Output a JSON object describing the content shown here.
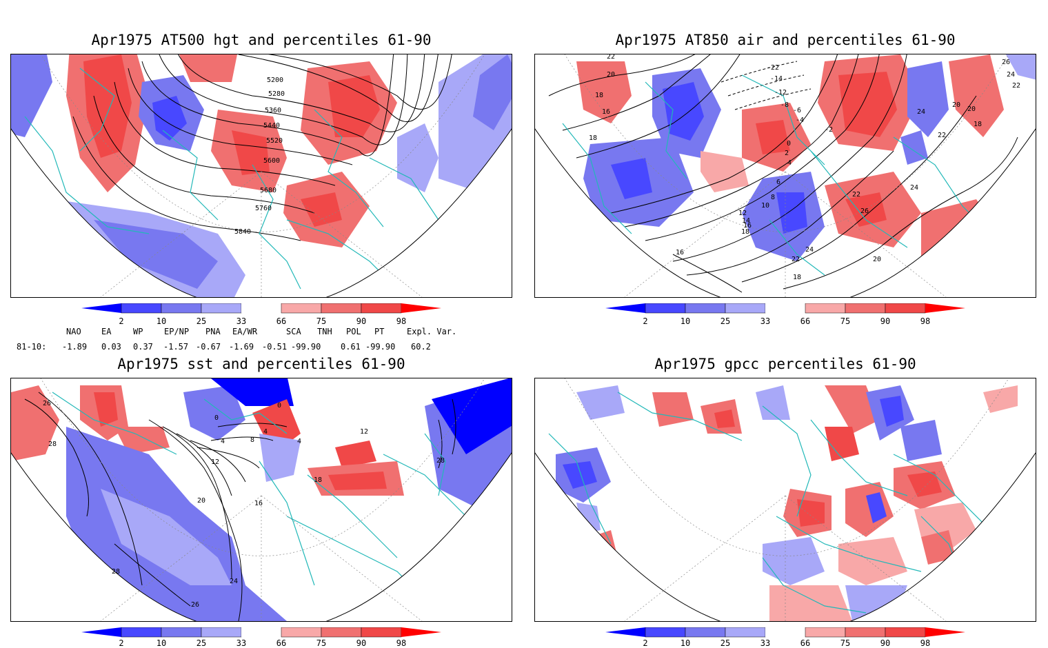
{
  "panels": [
    {
      "title": "Apr1975 AT500 hgt and percentiles 61-90",
      "contour_labels": [
        "5200",
        "5280",
        "5360",
        "5440",
        "5520",
        "5600",
        "5680",
        "5760",
        "5840"
      ]
    },
    {
      "title": "Apr1975 AT850 air and percentiles 61-90",
      "contour_labels": [
        "22",
        "20",
        "18",
        "16",
        "18",
        "-22",
        "-14",
        "-12",
        "-8",
        "-6",
        "-4",
        "-2",
        "0",
        "2",
        "4",
        "6",
        "8",
        "10",
        "12",
        "14",
        "16",
        "18",
        "16",
        "24",
        "22",
        "18",
        "20",
        "22",
        "24",
        "26",
        "26",
        "24",
        "22",
        "20",
        "18",
        "22",
        "24",
        "20"
      ]
    },
    {
      "title": "Apr1975 sst and percentiles 61-90",
      "contour_labels": [
        "26",
        "28",
        "0",
        "4",
        "8",
        "12",
        "16",
        "20",
        "24",
        "28",
        "26",
        "0",
        "4",
        "4",
        "12",
        "18",
        "28"
      ]
    },
    {
      "title": "Apr1975 gpcc percentiles 61-90",
      "contour_labels": []
    }
  ],
  "colorbar": {
    "labels": [
      "2",
      "10",
      "25",
      "33",
      "66",
      "75",
      "90",
      "98"
    ],
    "colors": [
      "#0000ff",
      "#4848ff",
      "#7878f0",
      "#a8a8f8",
      "#ffffff",
      "#f8a8a8",
      "#f07070",
      "#f04848",
      "#ff0000"
    ]
  },
  "indices": {
    "headers": [
      "NAO",
      "EA",
      "WP",
      "EP/NP",
      "PNA",
      "EA/WR",
      "SCA",
      "TNH",
      "POL",
      "PT",
      "Expl. Var."
    ],
    "row_label": "81-10:",
    "values": [
      "-1.89",
      "0.03",
      "0.37",
      "-1.57",
      "-0.67",
      "-1.69",
      "-0.51",
      "-99.90",
      "0.61",
      "-99.90",
      "60.2"
    ]
  }
}
